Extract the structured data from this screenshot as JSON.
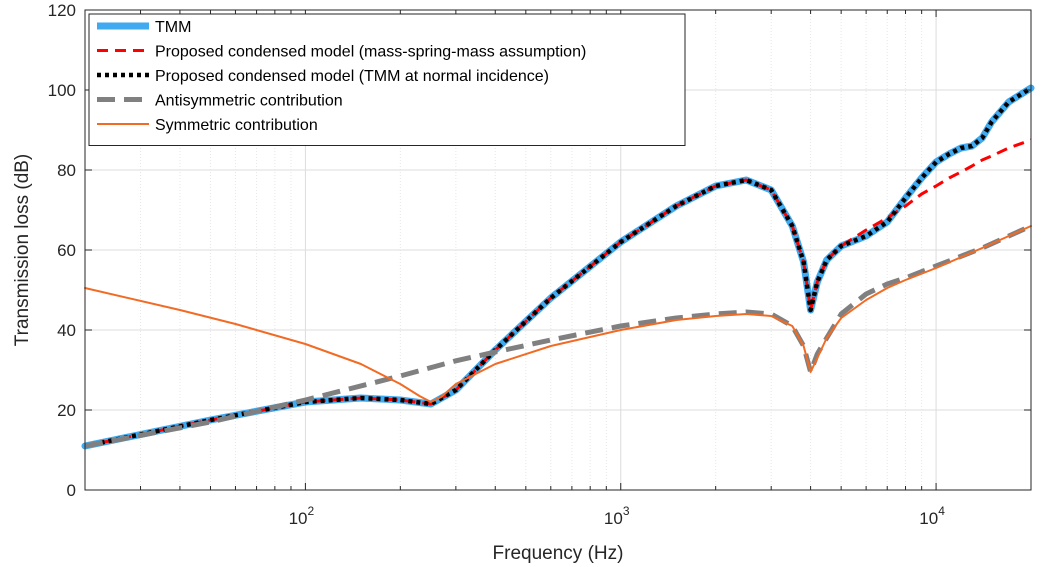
{
  "chart_data": {
    "type": "line",
    "title": "",
    "xlabel": "Frequency (Hz)",
    "ylabel": "Transmission loss (dB)",
    "xscale": "log",
    "xlim": [
      20,
      20000
    ],
    "ylim": [
      0,
      120
    ],
    "yticks": [
      0,
      20,
      40,
      60,
      80,
      100,
      120
    ],
    "yticklabels": [
      "0",
      "20",
      "40",
      "60",
      "80",
      "100",
      "120"
    ],
    "xticks": [
      100,
      1000,
      10000
    ],
    "xticklabels": [
      {
        "base": "10",
        "exp": "2"
      },
      {
        "base": "10",
        "exp": "3"
      },
      {
        "base": "10",
        "exp": "4"
      }
    ],
    "grid": true,
    "legend_position": "top-left",
    "series": [
      {
        "name": "TMM",
        "color": "#3FAAF0",
        "style": "solid-thick",
        "x": [
          20,
          50,
          100,
          150,
          200,
          250,
          300,
          400,
          600,
          1000,
          1500,
          2000,
          2500,
          3000,
          3500,
          3800,
          4000,
          4200,
          4500,
          5000,
          6000,
          7000,
          8000,
          9000,
          10000,
          11000,
          12000,
          13000,
          14000,
          15000,
          17000,
          20000
        ],
        "y": [
          11,
          17.5,
          22,
          23,
          22.5,
          21.5,
          25,
          35,
          48,
          62,
          71,
          76,
          77.5,
          75,
          66,
          57,
          45,
          52,
          57.5,
          61,
          63.5,
          67,
          73,
          78,
          82,
          84,
          85.5,
          86,
          88,
          92,
          97,
          100.5
        ]
      },
      {
        "name": "Proposed condensed model (mass-spring-mass assumption)",
        "color": "#FF0000",
        "style": "dashed",
        "x": [
          20,
          50,
          100,
          150,
          200,
          250,
          300,
          400,
          600,
          1000,
          1500,
          2000,
          2500,
          3000,
          3500,
          3800,
          4000,
          4200,
          4500,
          5000,
          6000,
          7000,
          8000,
          9000,
          10000,
          11000,
          12000,
          13000,
          14000,
          15000,
          17000,
          20000
        ],
        "y": [
          11,
          17.5,
          22,
          23,
          22.5,
          21.5,
          25,
          35,
          48,
          62,
          71,
          76,
          77.5,
          75,
          66,
          57,
          45,
          52,
          57.5,
          61,
          65,
          68,
          71,
          74,
          76,
          78,
          79.5,
          81,
          82.5,
          83.5,
          85.5,
          87.5
        ]
      },
      {
        "name": "Proposed condensed model (TMM at normal incidence)",
        "color": "#000000",
        "style": "dotted",
        "x": [
          20,
          50,
          100,
          150,
          200,
          250,
          300,
          400,
          600,
          1000,
          1500,
          2000,
          2500,
          3000,
          3500,
          3800,
          4000,
          4200,
          4500,
          5000,
          6000,
          7000,
          8000,
          9000,
          10000,
          11000,
          12000,
          13000,
          14000,
          15000,
          17000,
          20000
        ],
        "y": [
          11,
          17.5,
          22,
          23,
          22.5,
          21.5,
          25,
          35,
          48,
          62,
          71,
          76,
          77.5,
          75,
          66,
          57,
          45,
          52,
          57.5,
          61,
          63.5,
          67,
          73,
          78,
          82,
          84,
          85.5,
          86,
          88,
          92,
          97,
          100.5
        ]
      },
      {
        "name": "Antisymmetric contribution",
        "color": "#808080",
        "style": "dashed-thick",
        "x": [
          20,
          50,
          100,
          200,
          300,
          400,
          600,
          1000,
          1500,
          2000,
          2500,
          3000,
          3500,
          3800,
          4000,
          4200,
          4500,
          5000,
          6000,
          7000,
          8000,
          10000,
          14000,
          20000
        ],
        "y": [
          11,
          17,
          22.5,
          28.5,
          32.3,
          34.5,
          37.5,
          41,
          43,
          44,
          44.5,
          44,
          41,
          36,
          29.5,
          34,
          38,
          44,
          49,
          51.5,
          53,
          56,
          60.5,
          66
        ]
      },
      {
        "name": "Symmetric contribution",
        "color": "#F26B25",
        "style": "solid",
        "x": [
          20,
          40,
          60,
          100,
          150,
          200,
          230,
          250,
          270,
          300,
          400,
          600,
          1000,
          1500,
          2000,
          2500,
          3000,
          3500,
          3800,
          4000,
          4200,
          4500,
          5000,
          6000,
          7000,
          8000,
          10000,
          14000,
          20000
        ],
        "y": [
          50.5,
          45,
          41.5,
          36.5,
          31.5,
          26.5,
          23.5,
          22,
          23.3,
          26.5,
          31.5,
          36,
          40,
          42.5,
          43.5,
          44,
          43.5,
          41,
          36,
          29.5,
          33,
          38,
          43,
          47.5,
          50.5,
          52.5,
          55.5,
          60.5,
          66
        ]
      }
    ]
  }
}
